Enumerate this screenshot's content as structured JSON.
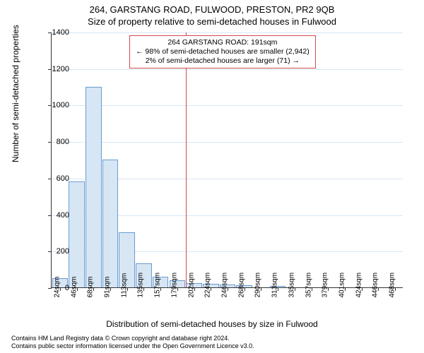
{
  "title": {
    "line1": "264, GARSTANG ROAD, FULWOOD, PRESTON, PR2 9QB",
    "line2": "Size of property relative to semi-detached houses in Fulwood"
  },
  "chart": {
    "type": "histogram",
    "ylabel": "Number of semi-detached properties",
    "xlabel": "Distribution of semi-detached houses by size in Fulwood",
    "ylim": [
      0,
      1400
    ],
    "ytick_step": 200,
    "yticks": [
      0,
      200,
      400,
      600,
      800,
      1000,
      1200,
      1400
    ],
    "x_categories": [
      "24sqm",
      "46sqm",
      "68sqm",
      "91sqm",
      "113sqm",
      "135sqm",
      "157sqm",
      "179sqm",
      "202sqm",
      "224sqm",
      "246sqm",
      "268sqm",
      "290sqm",
      "313sqm",
      "335sqm",
      "357sqm",
      "379sqm",
      "401sqm",
      "424sqm",
      "446sqm",
      "468sqm"
    ],
    "values": [
      50,
      580,
      1100,
      700,
      300,
      130,
      60,
      40,
      25,
      20,
      15,
      10,
      0,
      8,
      0,
      0,
      0,
      0,
      0,
      0,
      0
    ],
    "bar_fill": "#d7e6f4",
    "bar_stroke": "#6a9bd1",
    "grid_color": "#d7e6f4",
    "axis_color": "#333333",
    "background_color": "#ffffff",
    "bar_width_rel": 0.95,
    "marker": {
      "x_value_sqm": 191,
      "color": "#d14a4a"
    },
    "annotation": {
      "title": "264 GARSTANG ROAD: 191sqm",
      "line2": "← 98% of semi-detached houses are smaller (2,942)",
      "line3": "2% of semi-detached houses are larger (71) →",
      "border_color": "#d14a4a",
      "bg_color": "#ffffff",
      "fontsize": 10.5
    }
  },
  "footer": {
    "line1": "Contains HM Land Registry data © Crown copyright and database right 2024.",
    "line2": "Contains public sector information licensed under the Open Government Licence v3.0."
  }
}
